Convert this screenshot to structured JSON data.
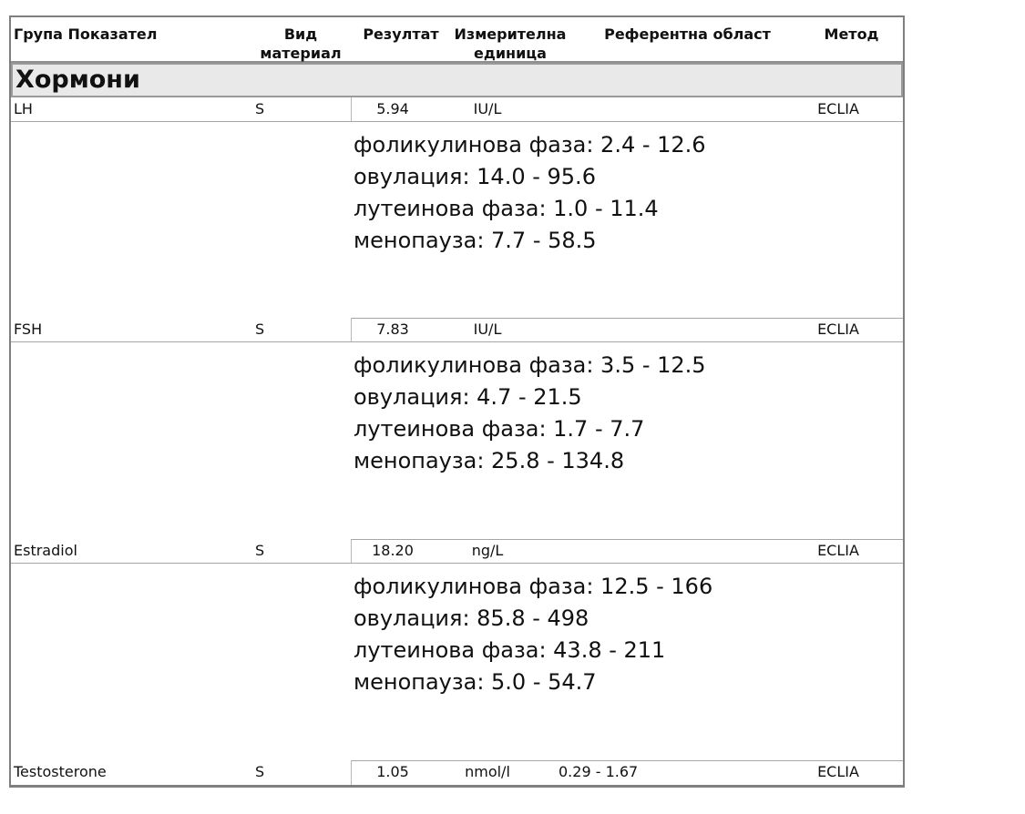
{
  "colors": {
    "outer_border": "#7f7f7f",
    "row_line": "#a6a6a6",
    "section_band_bg": "#e9e9e9",
    "section_band_border": "#9a9a9a",
    "text": "#111111"
  },
  "table": {
    "columns": {
      "group": "Група",
      "indicator": "Показател",
      "material_line1": "Вид",
      "material_line2": "материал",
      "result": "Резултат",
      "unit_line1": "Измерителна",
      "unit_line2": "единица",
      "reference": "Референтна област",
      "method": "Метод"
    },
    "section": "Хормони",
    "rows": [
      {
        "indicator": "LH",
        "material": "S",
        "result": "5.94",
        "unit": "IU/L",
        "reference_inline": "",
        "method": "ECLIA",
        "reference_lines": [
          "фоликулинова фаза: 2.4 - 12.6",
          "овулация: 14.0 - 95.6",
          "лутеинова фаза: 1.0 - 11.4",
          "менопауза: 7.7 - 58.5"
        ]
      },
      {
        "indicator": "FSH",
        "material": "S",
        "result": "7.83",
        "unit": "IU/L",
        "reference_inline": "",
        "method": "ECLIA",
        "reference_lines": [
          "фоликулинова фаза: 3.5 - 12.5",
          "овулация: 4.7 - 21.5",
          "лутеинова фаза: 1.7 - 7.7",
          "менопауза: 25.8 - 134.8"
        ]
      },
      {
        "indicator": "Estradiol",
        "material": "S",
        "result": "18.20",
        "unit": "ng/L",
        "reference_inline": "",
        "method": "ECLIA",
        "reference_lines": [
          "фоликулинова фаза: 12.5 - 166",
          "овулация: 85.8 - 498",
          "лутеинова фаза: 43.8 - 211",
          "менопауза: 5.0 - 54.7"
        ]
      },
      {
        "indicator": "Testosterone",
        "material": "S",
        "result": "1.05",
        "unit": "nmol/l",
        "reference_inline": "0.29 - 1.67",
        "method": "ECLIA",
        "reference_lines": []
      }
    ]
  }
}
